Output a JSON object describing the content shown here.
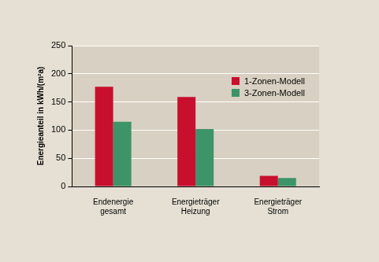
{
  "chart_data": {
    "type": "bar",
    "y_label": "Energieanteil in kWh/(m²a)",
    "categories": [
      [
        "Endenergie",
        "gesamt"
      ],
      [
        "Energieträger",
        "Heizung"
      ],
      [
        "Energieträger",
        "Strom"
      ]
    ],
    "series": [
      {
        "name": "1-Zonen-Modell",
        "color": "#c8102e",
        "values": [
          177,
          159,
          19
        ]
      },
      {
        "name": "3-Zonen-Modell",
        "color": "#3d9468",
        "values": [
          115,
          102,
          15
        ]
      }
    ],
    "ylim": [
      0,
      250
    ],
    "yticks": [
      0,
      50,
      100,
      150,
      200,
      250
    ],
    "grid": true,
    "legend": "top-right"
  }
}
